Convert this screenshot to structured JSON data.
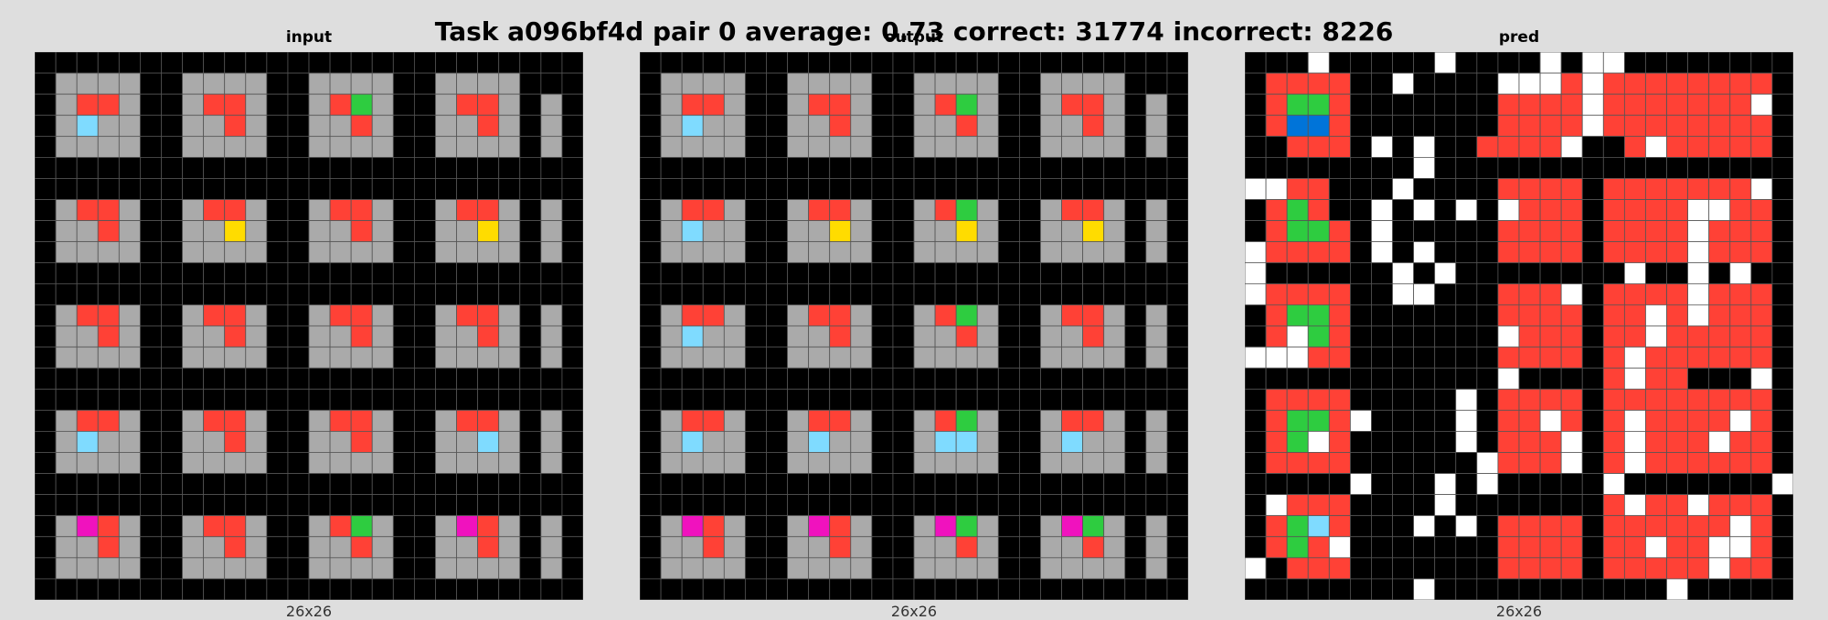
{
  "title": "Task a096bf4d pair 0 average: 0.73 correct: 31774 incorrect: 8226",
  "palette": {
    "0": "#000000",
    "1": "#0074d9",
    "2": "#ff4136",
    "3": "#2ecc40",
    "4": "#ffdc00",
    "5": "#aaaaaa",
    "6": "#f012be",
    "7": "#ff851b",
    "8": "#7fdbff",
    "9": "#870c25",
    "W": "#ffffff"
  },
  "gridline_color": "#555555",
  "panels": [
    {
      "label": "input",
      "size": "26x26",
      "rows": [
        "00000000000000000000000000",
        "05555005555005555005555000",
        "05225005225005235005225050",
        "05855005525005525005525050",
        "05555005555005555005555050",
        "00000000000000000000000000",
        "00000000000000000000000000",
        "05225005225005225005225050",
        "05525005545005525005545050",
        "05555005555005555005555050",
        "00000000000000000000000000",
        "00000000000000000000000000",
        "05225005225005225005225050",
        "05525005525005525005525050",
        "05555005555005555005555050",
        "00000000000000000000000000",
        "00000000000000000000000000",
        "05225005225005225005225050",
        "05855005525005525005585050",
        "05555005555005555005555050",
        "00000000000000000000000000",
        "00000000000000000000000000",
        "05625005225005235005625050",
        "05525005525005525005525050",
        "05555005555005555005555050",
        "00000000000000000000000000"
      ]
    },
    {
      "label": "output",
      "size": "26x26",
      "rows": [
        "00000000000000000000000000",
        "05555005555005555005555000",
        "05225005225005235005225050",
        "05855005525005525005525050",
        "05555005555005555005555050",
        "00000000000000000000000000",
        "00000000000000000000000000",
        "05225005225005235005225050",
        "05855005545005545005545050",
        "05555005555005555005555050",
        "00000000000000000000000000",
        "00000000000000000000000000",
        "05225005225005235005225050",
        "05855005525005525005525050",
        "05555005555005555005555050",
        "00000000000000000000000000",
        "00000000000000000000000000",
        "05225005225005235005225050",
        "05855005855005885005855050",
        "05555005555005555005555050",
        "00000000000000000000000000",
        "00000000000000000000000000",
        "05625005625005635005635050",
        "05525005525005525005525050",
        "05555005555005555005555050",
        "00000000000000000000000000"
      ]
    },
    {
      "label": "pred",
      "size": "26x26",
      "rows": [
        "000W00000W0000W0WW00000000",
        "0222200W0000WWW2W222222220",
        "0233200000002222W2222222W0",
        "0211200000002222W222222220",
        "002220W0W002222W002W222220",
        "00000000W00000000000000000",
        "WW22000W0000222202222222W0",
        "023200W0W0W0W22202222WW220",
        "023320W00000222202222W2220",
        "W22220W0W000222202222W2220",
        "W000000W0W00000000W00W0W00",
        "W222200WW000222W02222W2220",
        "0233200000002222022W2W2220",
        "02W320000000W222022W222220",
        "WWW220000000222202W2222220",
        "000000000000W00002W22000W0",
        "0222200000W022220222222220",
        "02332W0000W022W202W2222W20",
        "023W200000W0222W02W222W220",
        "02222000000W222W02W2222220",
        "00000W000W0W00000W0000000W",
        "0W2220000W00000002W22W2220",
        "02382000W0W022220222222W20",
        "0232W00000002222022W22WW20",
        "W022200000002222022222W220",
        "00000000W00000000000W00000"
      ]
    }
  ]
}
